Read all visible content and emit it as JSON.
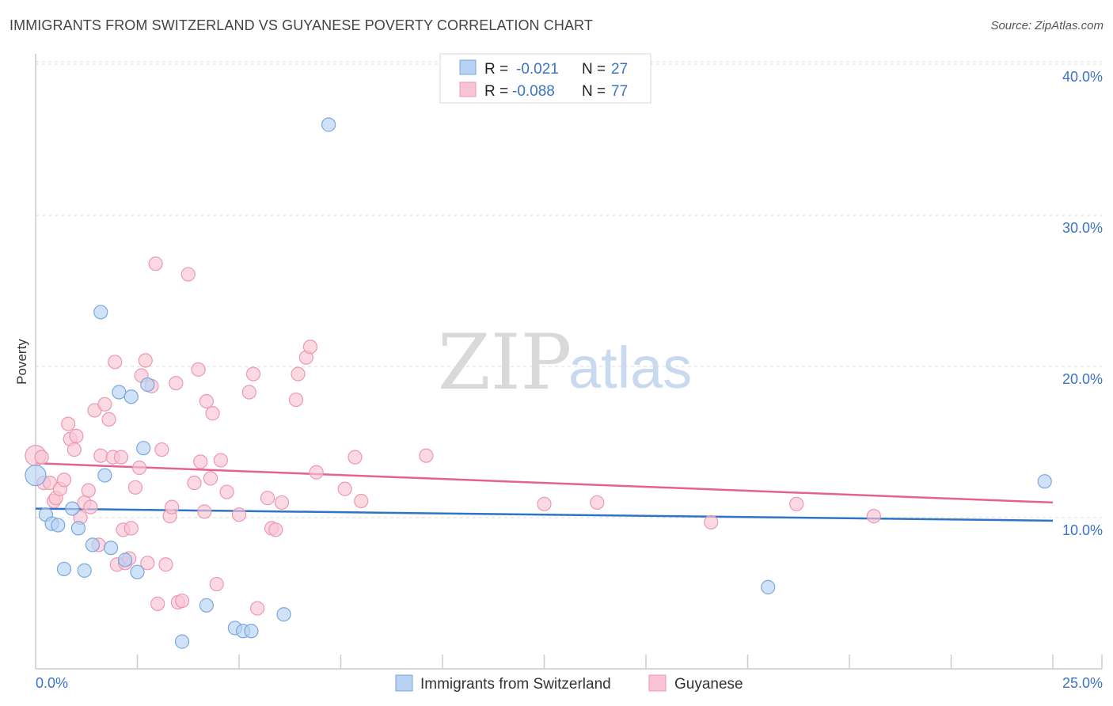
{
  "header": {
    "title": "IMMIGRANTS FROM SWITZERLAND VS GUYANESE POVERTY CORRELATION CHART",
    "source": "Source: ZipAtlas.com"
  },
  "watermark": {
    "zip": "ZIP",
    "atlas": "atlas"
  },
  "colors": {
    "blue_fill": "#b7d2f2",
    "blue_stroke": "#7aa7de",
    "blue_line": "#2f74c8",
    "pink_fill": "#f8c4d4",
    "pink_stroke": "#ee97b3",
    "pink_line": "#e4628f",
    "tick_text": "#3b73c6"
  },
  "legend": {
    "r_label": "R =",
    "n_label": "N =",
    "series1": {
      "r": "-0.021",
      "n": "27"
    },
    "series2": {
      "r": "-0.088",
      "n": "77"
    }
  },
  "chart_data": {
    "type": "scatter",
    "title": "IMMIGRANTS FROM SWITZERLAND VS GUYANESE POVERTY CORRELATION CHART",
    "xlabel": "",
    "ylabel": "Poverty",
    "xlim": [
      0,
      25
    ],
    "ylim": [
      0,
      41
    ],
    "x_tick_labels": [
      "0.0%",
      "25.0%"
    ],
    "y_ticks": [
      10,
      20,
      30,
      40
    ],
    "y_tick_labels": [
      "10.0%",
      "20.0%",
      "30.0%",
      "40.0%"
    ],
    "legend_position": "top-center",
    "series": [
      {
        "name": "Immigrants from Switzerland",
        "color": "#7aa7de",
        "trend": {
          "x": [
            0,
            25
          ],
          "y": [
            10.6,
            9.8
          ]
        },
        "points": [
          {
            "x": 0.0,
            "y": 12.8
          },
          {
            "x": 0.25,
            "y": 10.2
          },
          {
            "x": 0.4,
            "y": 9.6
          },
          {
            "x": 0.55,
            "y": 9.5
          },
          {
            "x": 0.7,
            "y": 6.6
          },
          {
            "x": 0.9,
            "y": 10.6
          },
          {
            "x": 1.05,
            "y": 9.3
          },
          {
            "x": 1.2,
            "y": 6.5
          },
          {
            "x": 1.4,
            "y": 8.2
          },
          {
            "x": 1.6,
            "y": 23.6
          },
          {
            "x": 1.7,
            "y": 12.8
          },
          {
            "x": 1.85,
            "y": 8.0
          },
          {
            "x": 2.05,
            "y": 18.3
          },
          {
            "x": 2.2,
            "y": 7.2
          },
          {
            "x": 2.35,
            "y": 18.0
          },
          {
            "x": 2.5,
            "y": 6.4
          },
          {
            "x": 2.65,
            "y": 14.6
          },
          {
            "x": 2.75,
            "y": 18.8
          },
          {
            "x": 3.6,
            "y": 1.8
          },
          {
            "x": 4.2,
            "y": 4.2
          },
          {
            "x": 4.9,
            "y": 2.7
          },
          {
            "x": 5.1,
            "y": 2.5
          },
          {
            "x": 5.3,
            "y": 2.5
          },
          {
            "x": 6.1,
            "y": 3.6
          },
          {
            "x": 7.2,
            "y": 36.0
          },
          {
            "x": 18.0,
            "y": 5.4
          },
          {
            "x": 24.8,
            "y": 12.4
          }
        ]
      },
      {
        "name": "Guyanese",
        "color": "#ee97b3",
        "trend": {
          "x": [
            0,
            25
          ],
          "y": [
            13.6,
            11.0
          ]
        },
        "points": [
          {
            "x": 0.0,
            "y": 14.1
          },
          {
            "x": 0.15,
            "y": 14.0
          },
          {
            "x": 0.2,
            "y": 12.3
          },
          {
            "x": 0.35,
            "y": 12.3
          },
          {
            "x": 0.45,
            "y": 11.1
          },
          {
            "x": 0.5,
            "y": 11.3
          },
          {
            "x": 0.6,
            "y": 11.9
          },
          {
            "x": 0.7,
            "y": 12.5
          },
          {
            "x": 0.8,
            "y": 16.2
          },
          {
            "x": 0.85,
            "y": 15.2
          },
          {
            "x": 0.95,
            "y": 14.5
          },
          {
            "x": 1.0,
            "y": 15.4
          },
          {
            "x": 1.1,
            "y": 10.0
          },
          {
            "x": 1.2,
            "y": 11.0
          },
          {
            "x": 1.3,
            "y": 11.8
          },
          {
            "x": 1.35,
            "y": 10.7
          },
          {
            "x": 1.45,
            "y": 17.1
          },
          {
            "x": 1.55,
            "y": 8.2
          },
          {
            "x": 1.6,
            "y": 14.1
          },
          {
            "x": 1.7,
            "y": 17.5
          },
          {
            "x": 1.8,
            "y": 16.5
          },
          {
            "x": 1.9,
            "y": 14.0
          },
          {
            "x": 1.95,
            "y": 20.3
          },
          {
            "x": 2.0,
            "y": 6.9
          },
          {
            "x": 2.1,
            "y": 14.0
          },
          {
            "x": 2.15,
            "y": 9.2
          },
          {
            "x": 2.2,
            "y": 7.0
          },
          {
            "x": 2.3,
            "y": 7.3
          },
          {
            "x": 2.35,
            "y": 9.3
          },
          {
            "x": 2.45,
            "y": 12.0
          },
          {
            "x": 2.55,
            "y": 13.3
          },
          {
            "x": 2.6,
            "y": 19.4
          },
          {
            "x": 2.7,
            "y": 20.4
          },
          {
            "x": 2.75,
            "y": 7.0
          },
          {
            "x": 2.85,
            "y": 18.7
          },
          {
            "x": 2.95,
            "y": 26.8
          },
          {
            "x": 3.0,
            "y": 4.3
          },
          {
            "x": 3.1,
            "y": 14.5
          },
          {
            "x": 3.2,
            "y": 6.9
          },
          {
            "x": 3.3,
            "y": 10.1
          },
          {
            "x": 3.35,
            "y": 10.7
          },
          {
            "x": 3.45,
            "y": 18.9
          },
          {
            "x": 3.5,
            "y": 4.4
          },
          {
            "x": 3.6,
            "y": 4.5
          },
          {
            "x": 3.75,
            "y": 26.1
          },
          {
            "x": 3.9,
            "y": 12.3
          },
          {
            "x": 4.0,
            "y": 19.8
          },
          {
            "x": 4.05,
            "y": 13.7
          },
          {
            "x": 4.15,
            "y": 10.4
          },
          {
            "x": 4.2,
            "y": 17.7
          },
          {
            "x": 4.3,
            "y": 12.6
          },
          {
            "x": 4.35,
            "y": 16.9
          },
          {
            "x": 4.45,
            "y": 5.6
          },
          {
            "x": 4.55,
            "y": 13.8
          },
          {
            "x": 4.7,
            "y": 11.7
          },
          {
            "x": 5.0,
            "y": 10.2
          },
          {
            "x": 5.25,
            "y": 18.3
          },
          {
            "x": 5.35,
            "y": 19.5
          },
          {
            "x": 5.45,
            "y": 4.0
          },
          {
            "x": 5.7,
            "y": 11.3
          },
          {
            "x": 5.8,
            "y": 9.3
          },
          {
            "x": 5.9,
            "y": 9.2
          },
          {
            "x": 6.05,
            "y": 11.0
          },
          {
            "x": 6.4,
            "y": 17.8
          },
          {
            "x": 6.45,
            "y": 19.5
          },
          {
            "x": 6.65,
            "y": 20.6
          },
          {
            "x": 6.75,
            "y": 21.3
          },
          {
            "x": 6.9,
            "y": 13.0
          },
          {
            "x": 7.6,
            "y": 11.9
          },
          {
            "x": 7.85,
            "y": 14.0
          },
          {
            "x": 8.0,
            "y": 11.1
          },
          {
            "x": 9.6,
            "y": 14.1
          },
          {
            "x": 12.5,
            "y": 10.9
          },
          {
            "x": 13.8,
            "y": 11.0
          },
          {
            "x": 16.6,
            "y": 9.7
          },
          {
            "x": 18.7,
            "y": 10.9
          },
          {
            "x": 20.6,
            "y": 10.1
          }
        ]
      }
    ]
  },
  "bottom_legend": {
    "item1": "Immigrants from Switzerland",
    "item2": "Guyanese"
  }
}
